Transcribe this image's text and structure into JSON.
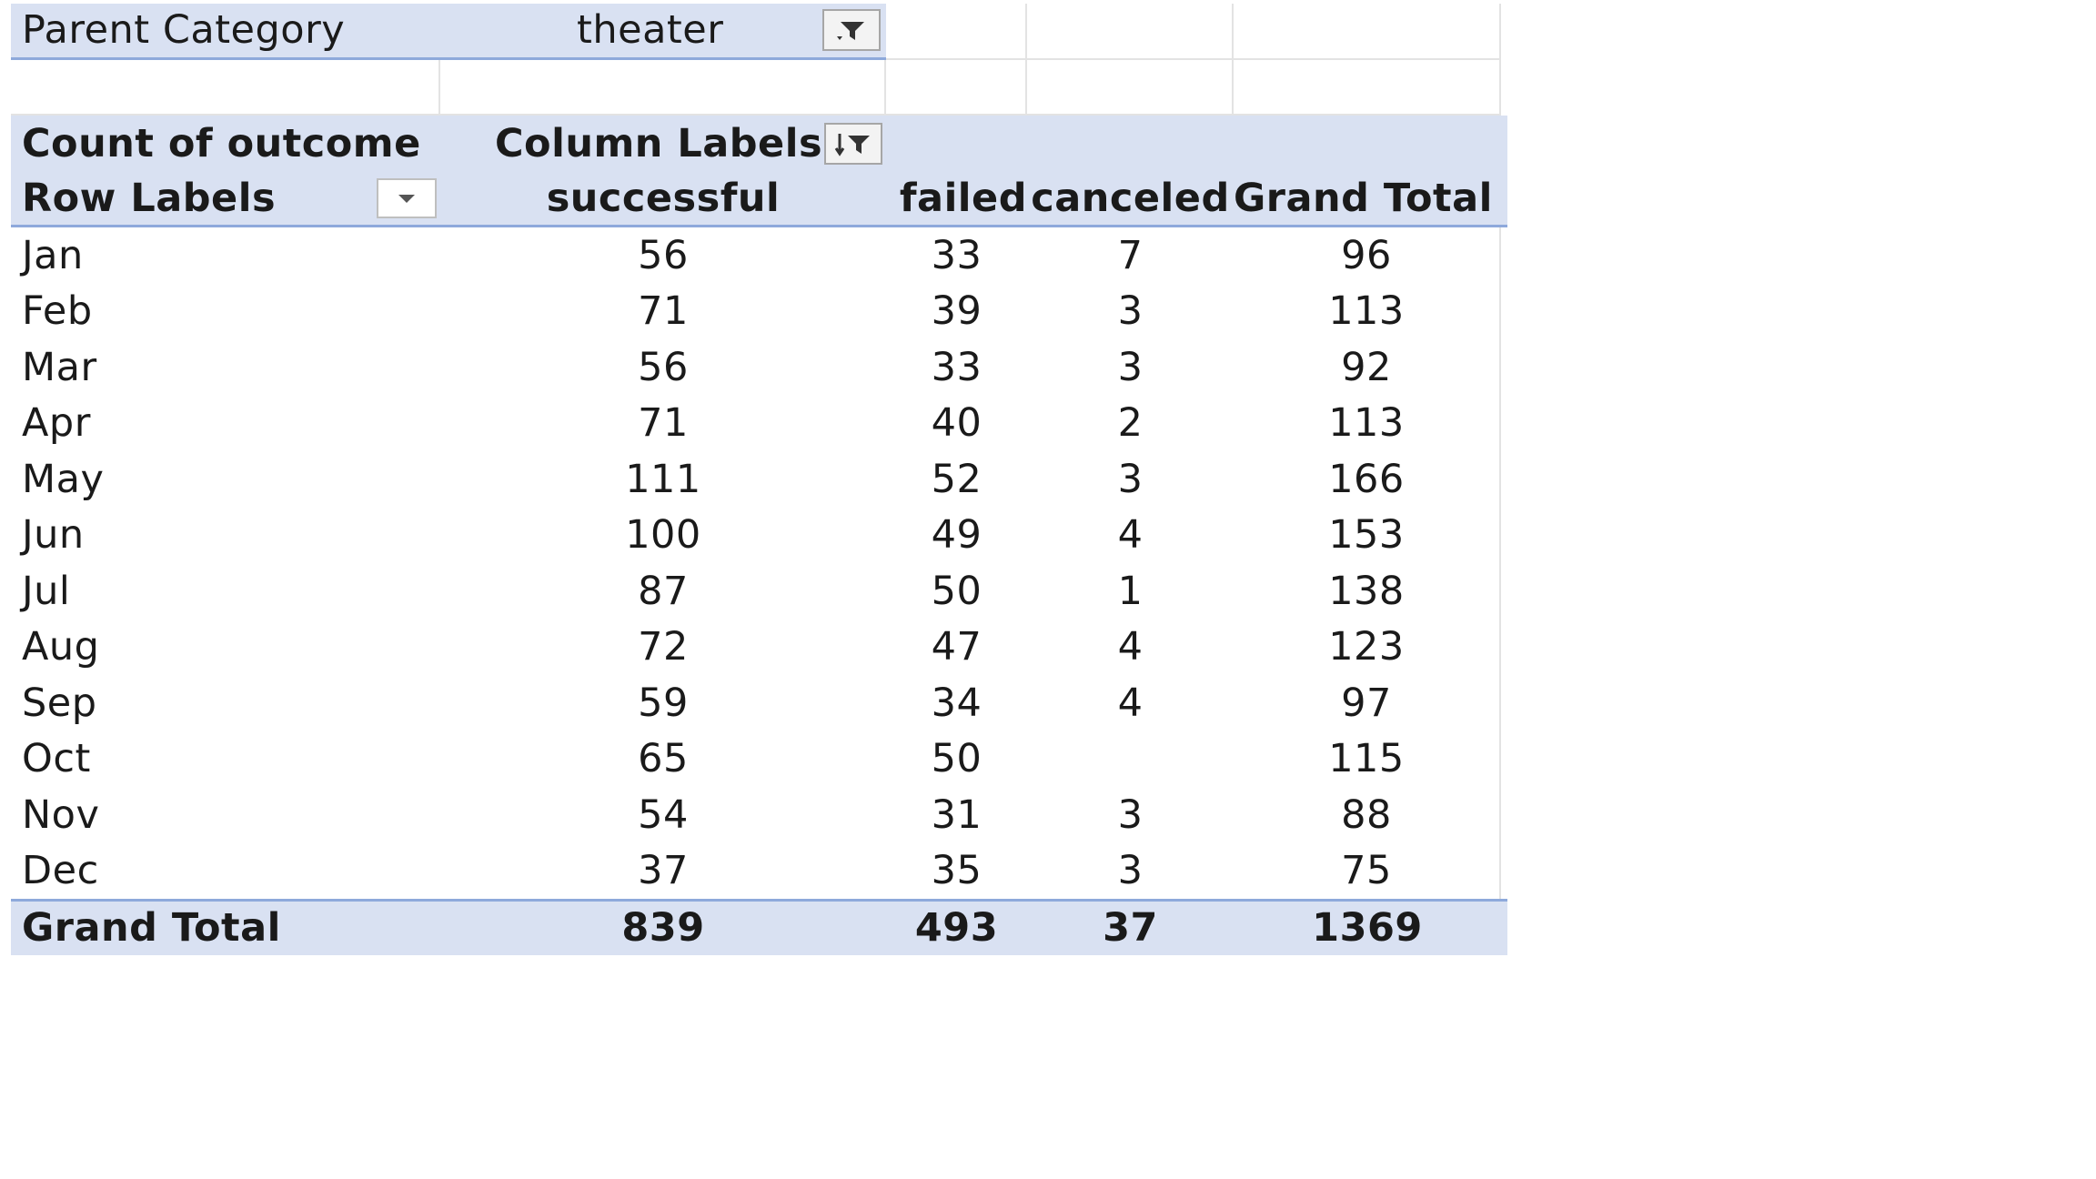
{
  "filter": {
    "field_label": "Parent Category",
    "selected_value": "theater",
    "button_icon": "filter-icon"
  },
  "pivot": {
    "value_field": "Count of outcome",
    "column_labels": "Column Labels",
    "column_labels_icon": "sort-filter-icon",
    "row_labels": "Row Labels",
    "row_labels_icon": "dropdown-arrow-icon",
    "columns": [
      "successful",
      "failed",
      "canceled",
      "Grand Total"
    ],
    "rows": [
      {
        "label": "Jan",
        "values": [
          "56",
          "33",
          "7",
          "96"
        ]
      },
      {
        "label": "Feb",
        "values": [
          "71",
          "39",
          "3",
          "113"
        ]
      },
      {
        "label": "Mar",
        "values": [
          "56",
          "33",
          "3",
          "92"
        ]
      },
      {
        "label": "Apr",
        "values": [
          "71",
          "40",
          "2",
          "113"
        ]
      },
      {
        "label": "May",
        "values": [
          "111",
          "52",
          "3",
          "166"
        ]
      },
      {
        "label": "Jun",
        "values": [
          "100",
          "49",
          "4",
          "153"
        ]
      },
      {
        "label": "Jul",
        "values": [
          "87",
          "50",
          "1",
          "138"
        ]
      },
      {
        "label": "Aug",
        "values": [
          "72",
          "47",
          "4",
          "123"
        ]
      },
      {
        "label": "Sep",
        "values": [
          "59",
          "34",
          "4",
          "97"
        ]
      },
      {
        "label": "Oct",
        "values": [
          "65",
          "50",
          "",
          "115"
        ]
      },
      {
        "label": "Nov",
        "values": [
          "54",
          "31",
          "3",
          "88"
        ]
      },
      {
        "label": "Dec",
        "values": [
          "37",
          "35",
          "3",
          "75"
        ]
      }
    ],
    "grand_total": {
      "label": "Grand Total",
      "values": [
        "839",
        "493",
        "37",
        "1369"
      ]
    }
  },
  "colors": {
    "header_fill": "#d9e1f2",
    "header_border": "#8ea9db",
    "gridline": "#e3e3e3"
  }
}
